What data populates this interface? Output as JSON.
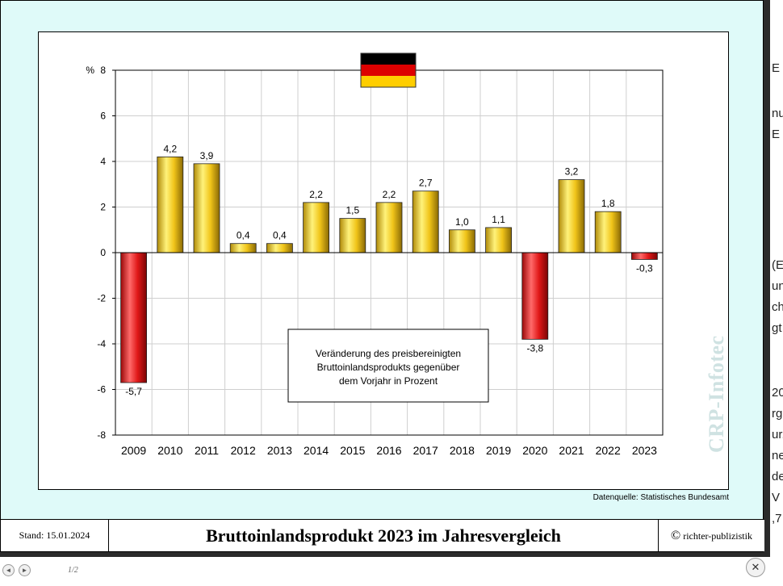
{
  "chart_data": {
    "type": "bar",
    "categories": [
      "2009",
      "2010",
      "2011",
      "2012",
      "2013",
      "2014",
      "2015",
      "2016",
      "2017",
      "2018",
      "2019",
      "2020",
      "2021",
      "2022",
      "2023"
    ],
    "values": [
      -5.7,
      4.2,
      3.9,
      0.4,
      0.4,
      2.2,
      1.5,
      2.2,
      2.7,
      1.0,
      1.1,
      -3.8,
      3.2,
      1.8,
      -0.3
    ],
    "value_labels": [
      "-5,7",
      "4,2",
      "3,9",
      "0,4",
      "0,4",
      "2,2",
      "1,5",
      "2,2",
      "2,7",
      "1,0",
      "1,1",
      "-3,8",
      "3,2",
      "1,8",
      "-0,3"
    ],
    "y_ticks": [
      8,
      6,
      4,
      2,
      0,
      -2,
      -4,
      -6,
      -8
    ],
    "y_tick_labels": [
      "8",
      "6",
      "4",
      "2",
      "0",
      "-2",
      "-4",
      "-6",
      "-8"
    ],
    "y_unit": "%",
    "ylim": [
      -8,
      8
    ],
    "grid": true,
    "colors": {
      "positive": "#f0c419",
      "negative": "#e01818"
    },
    "annotation_lines": [
      "Veränderung des preisbereinigten",
      "Bruttoinlandsprodukts gegenüber",
      "dem Vorjahr in Prozent"
    ]
  },
  "source_note": "Datenquelle: Statistisches Bundesamt",
  "watermark": "CRP-Infotec",
  "flag_icon": "german-flag-icon",
  "footer": {
    "stand": "Stand: 15.01.2024",
    "title": "Bruttoinlandsprodukt 2023 im Jahresvergleich",
    "copyright_symbol": "©",
    "publisher": "richter-publizistik"
  },
  "viewer": {
    "page_indicator": "1/2",
    "prev_icon": "◄",
    "next_icon": "►",
    "close_icon": "✕"
  },
  "background_fragments": [
    "E",
    "nu",
    "E",
    "(E",
    "un",
    "ch",
    "gt",
    "20",
    "rg",
    "ur.",
    "ne",
    "de",
    "V",
    ",7"
  ]
}
